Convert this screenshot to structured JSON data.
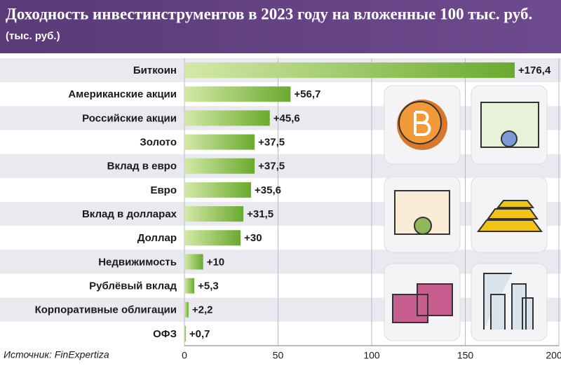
{
  "chart_data": {
    "type": "bar",
    "orientation": "horizontal",
    "title": "Доходность инвестинструментов в 2023 году на вложенные 100 тыс. руб.",
    "subtitle": "(тыс. руб.)",
    "source": "Источник: FinExpertiza",
    "categories": [
      "Биткоин",
      "Американские акции",
      "Российские акции",
      "Золото",
      "Вклад в евро",
      "Евро",
      "Вклад в долларах",
      "Доллар",
      "Недвижимость",
      "Рублёвый вклад",
      "Корпоративные облигации",
      "ОФЗ"
    ],
    "values": [
      176.4,
      56.7,
      45.6,
      37.5,
      37.5,
      35.6,
      31.5,
      30,
      10,
      5.3,
      2.2,
      0.7
    ],
    "value_labels": [
      "+176,4",
      "+56,7",
      "+45,6",
      "+37,5",
      "+37,5",
      "+35,6",
      "+31,5",
      "+30",
      "+10",
      "+5,3",
      "+2,2",
      "+0,7"
    ],
    "color": "#6aaa2e",
    "xlim": [
      0,
      200
    ],
    "xticks": [
      0,
      50,
      100,
      150,
      200
    ],
    "grid": true
  }
}
